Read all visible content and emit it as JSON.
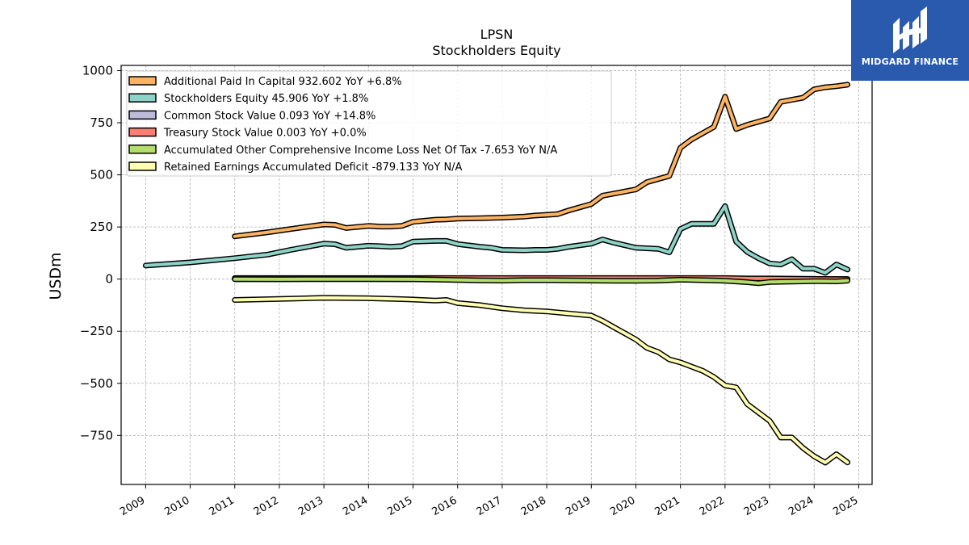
{
  "chart_data": {
    "type": "line",
    "title": "LPSN",
    "subtitle": "Stockholders  Equity",
    "ylabel": "USDm",
    "xlabel": "",
    "xlim": [
      2008.45,
      2025.3
    ],
    "ylim": [
      -985,
      1025
    ],
    "x_ticks": [
      2009,
      2010,
      2011,
      2012,
      2013,
      2014,
      2015,
      2016,
      2017,
      2018,
      2019,
      2020,
      2021,
      2022,
      2023,
      2024,
      2025
    ],
    "x_tick_labels": [
      "2009",
      "2010",
      "2011",
      "2012",
      "2013",
      "2014",
      "2015",
      "2016",
      "2017",
      "2018",
      "2019",
      "2020",
      "2021",
      "2022",
      "2023",
      "2024",
      "2025"
    ],
    "y_ticks": [
      1000,
      750,
      500,
      250,
      0,
      -250,
      -500,
      -750
    ],
    "y_tick_labels": [
      "1000",
      "750",
      "500",
      "250",
      "0",
      "−250",
      "−500",
      "−750"
    ],
    "grid": true,
    "legend_position": "top-left",
    "series": [
      {
        "name": "Additional Paid In Capital",
        "legend": "Additional Paid In Capital  932.602 YoY +6.8%",
        "color": "#fdb462",
        "x": [
          2011.0,
          2011.75,
          2012.25,
          2012.75,
          2013.0,
          2013.25,
          2013.5,
          2014.0,
          2014.25,
          2014.5,
          2014.75,
          2015.0,
          2015.5,
          2015.75,
          2016.0,
          2016.5,
          2017.0,
          2017.5,
          2017.75,
          2018.0,
          2018.25,
          2018.5,
          2019.0,
          2019.25,
          2019.5,
          2020.0,
          2020.25,
          2020.5,
          2020.75,
          2021.0,
          2021.25,
          2021.5,
          2021.75,
          2022.0,
          2022.25,
          2022.5,
          2022.75,
          2023.0,
          2023.25,
          2023.5,
          2023.75,
          2024.0,
          2024.25,
          2024.5,
          2024.75
        ],
        "values": [
          205,
          225,
          240,
          255,
          262,
          260,
          245,
          255,
          252,
          252,
          255,
          275,
          285,
          286,
          290,
          292,
          295,
          300,
          305,
          308,
          312,
          330,
          360,
          400,
          410,
          430,
          465,
          480,
          495,
          630,
          670,
          700,
          730,
          875,
          720,
          740,
          755,
          770,
          850,
          860,
          870,
          910,
          920,
          925,
          932.6
        ]
      },
      {
        "name": "Stockholders Equity",
        "legend": "Stockholders Equity  45.906 YoY +1.8%",
        "color": "#8dd3c7",
        "x": [
          2009.0,
          2010.0,
          2011.0,
          2011.75,
          2012.25,
          2012.75,
          2013.0,
          2013.25,
          2013.5,
          2014.0,
          2014.25,
          2014.5,
          2014.75,
          2015.0,
          2015.5,
          2015.75,
          2016.0,
          2016.5,
          2016.75,
          2017.0,
          2017.5,
          2017.75,
          2018.0,
          2018.25,
          2018.5,
          2019.0,
          2019.25,
          2019.5,
          2020.0,
          2020.5,
          2020.75,
          2021.0,
          2021.25,
          2021.5,
          2021.75,
          2022.0,
          2022.25,
          2022.5,
          2022.75,
          2023.0,
          2023.25,
          2023.5,
          2023.75,
          2024.0,
          2024.25,
          2024.5,
          2024.75
        ],
        "values": [
          65,
          80,
          100,
          118,
          140,
          160,
          170,
          167,
          150,
          160,
          158,
          155,
          158,
          180,
          183,
          183,
          168,
          155,
          150,
          140,
          138,
          140,
          140,
          145,
          155,
          170,
          190,
          175,
          150,
          145,
          128,
          240,
          265,
          265,
          265,
          350,
          180,
          130,
          100,
          75,
          70,
          95,
          50,
          50,
          30,
          70,
          45.9
        ]
      },
      {
        "name": "Common Stock Value",
        "legend": "Common Stock Value  0.093 YoY +14.8%",
        "color": "#bebada",
        "x": [
          2011.0,
          2013.0,
          2015.0,
          2017.0,
          2019.0,
          2021.0,
          2023.0,
          2024.75
        ],
        "values": [
          0.05,
          0.06,
          0.06,
          0.07,
          0.07,
          0.08,
          0.08,
          0.093
        ]
      },
      {
        "name": "Treasury Stock Value",
        "legend": "Treasury Stock Value  0.003 YoY +0.0%",
        "color": "#fb8072",
        "x": [
          2011.0,
          2013.0,
          2015.0,
          2017.0,
          2019.0,
          2021.0,
          2022.0,
          2022.5,
          2023.0,
          2024.0,
          2024.75
        ],
        "values": [
          5,
          5,
          5,
          5,
          5,
          5,
          5,
          3,
          3,
          1,
          0.003
        ]
      },
      {
        "name": "Accumulated Other Comprehensive Income Loss Net Of Tax",
        "legend": "Accumulated Other Comprehensive Income Loss Net Of Tax  -7.653 YoY N/A",
        "color": "#b3de69",
        "x": [
          2011.0,
          2012.0,
          2013.0,
          2014.0,
          2015.0,
          2015.5,
          2016.0,
          2016.5,
          2017.0,
          2017.5,
          2018.0,
          2018.5,
          2019.0,
          2019.5,
          2020.0,
          2020.5,
          2021.0,
          2021.5,
          2022.0,
          2022.5,
          2022.75,
          2023.0,
          2023.5,
          2024.0,
          2024.5,
          2024.75
        ],
        "values": [
          0,
          -1,
          0,
          0,
          -1,
          -2,
          -4,
          -6,
          -7,
          -5,
          -5,
          -6,
          -7,
          -8,
          -8,
          -7,
          -3,
          -5,
          -8,
          -15,
          -20,
          -14,
          -12,
          -10,
          -11,
          -7.65
        ]
      },
      {
        "name": "Retained Earnings Accumulated Deficit",
        "legend": "Retained Earnings Accumulated Deficit  -879.133 YoY N/A",
        "color": "#ffffb3",
        "x": [
          2011.0,
          2012.0,
          2013.0,
          2014.0,
          2014.75,
          2015.0,
          2015.5,
          2015.75,
          2016.0,
          2016.5,
          2017.0,
          2017.5,
          2018.0,
          2018.5,
          2019.0,
          2019.25,
          2019.5,
          2019.75,
          2020.0,
          2020.25,
          2020.5,
          2020.75,
          2021.0,
          2021.25,
          2021.5,
          2021.75,
          2022.0,
          2022.25,
          2022.5,
          2022.75,
          2023.0,
          2023.25,
          2023.5,
          2023.75,
          2024.0,
          2024.25,
          2024.5,
          2024.75
        ],
        "values": [
          -100,
          -95,
          -90,
          -92,
          -96,
          -98,
          -103,
          -100,
          -115,
          -125,
          -140,
          -150,
          -155,
          -165,
          -175,
          -200,
          -230,
          -260,
          -290,
          -330,
          -350,
          -385,
          -400,
          -420,
          -440,
          -470,
          -510,
          -520,
          -600,
          -640,
          -680,
          -760,
          -760,
          -810,
          -850,
          -880,
          -840,
          -879.1
        ]
      }
    ]
  },
  "logo": {
    "text": "MIDGARD FINANCE",
    "bg_color": "#2a5aad",
    "icon": "midgard-logo-icon"
  }
}
